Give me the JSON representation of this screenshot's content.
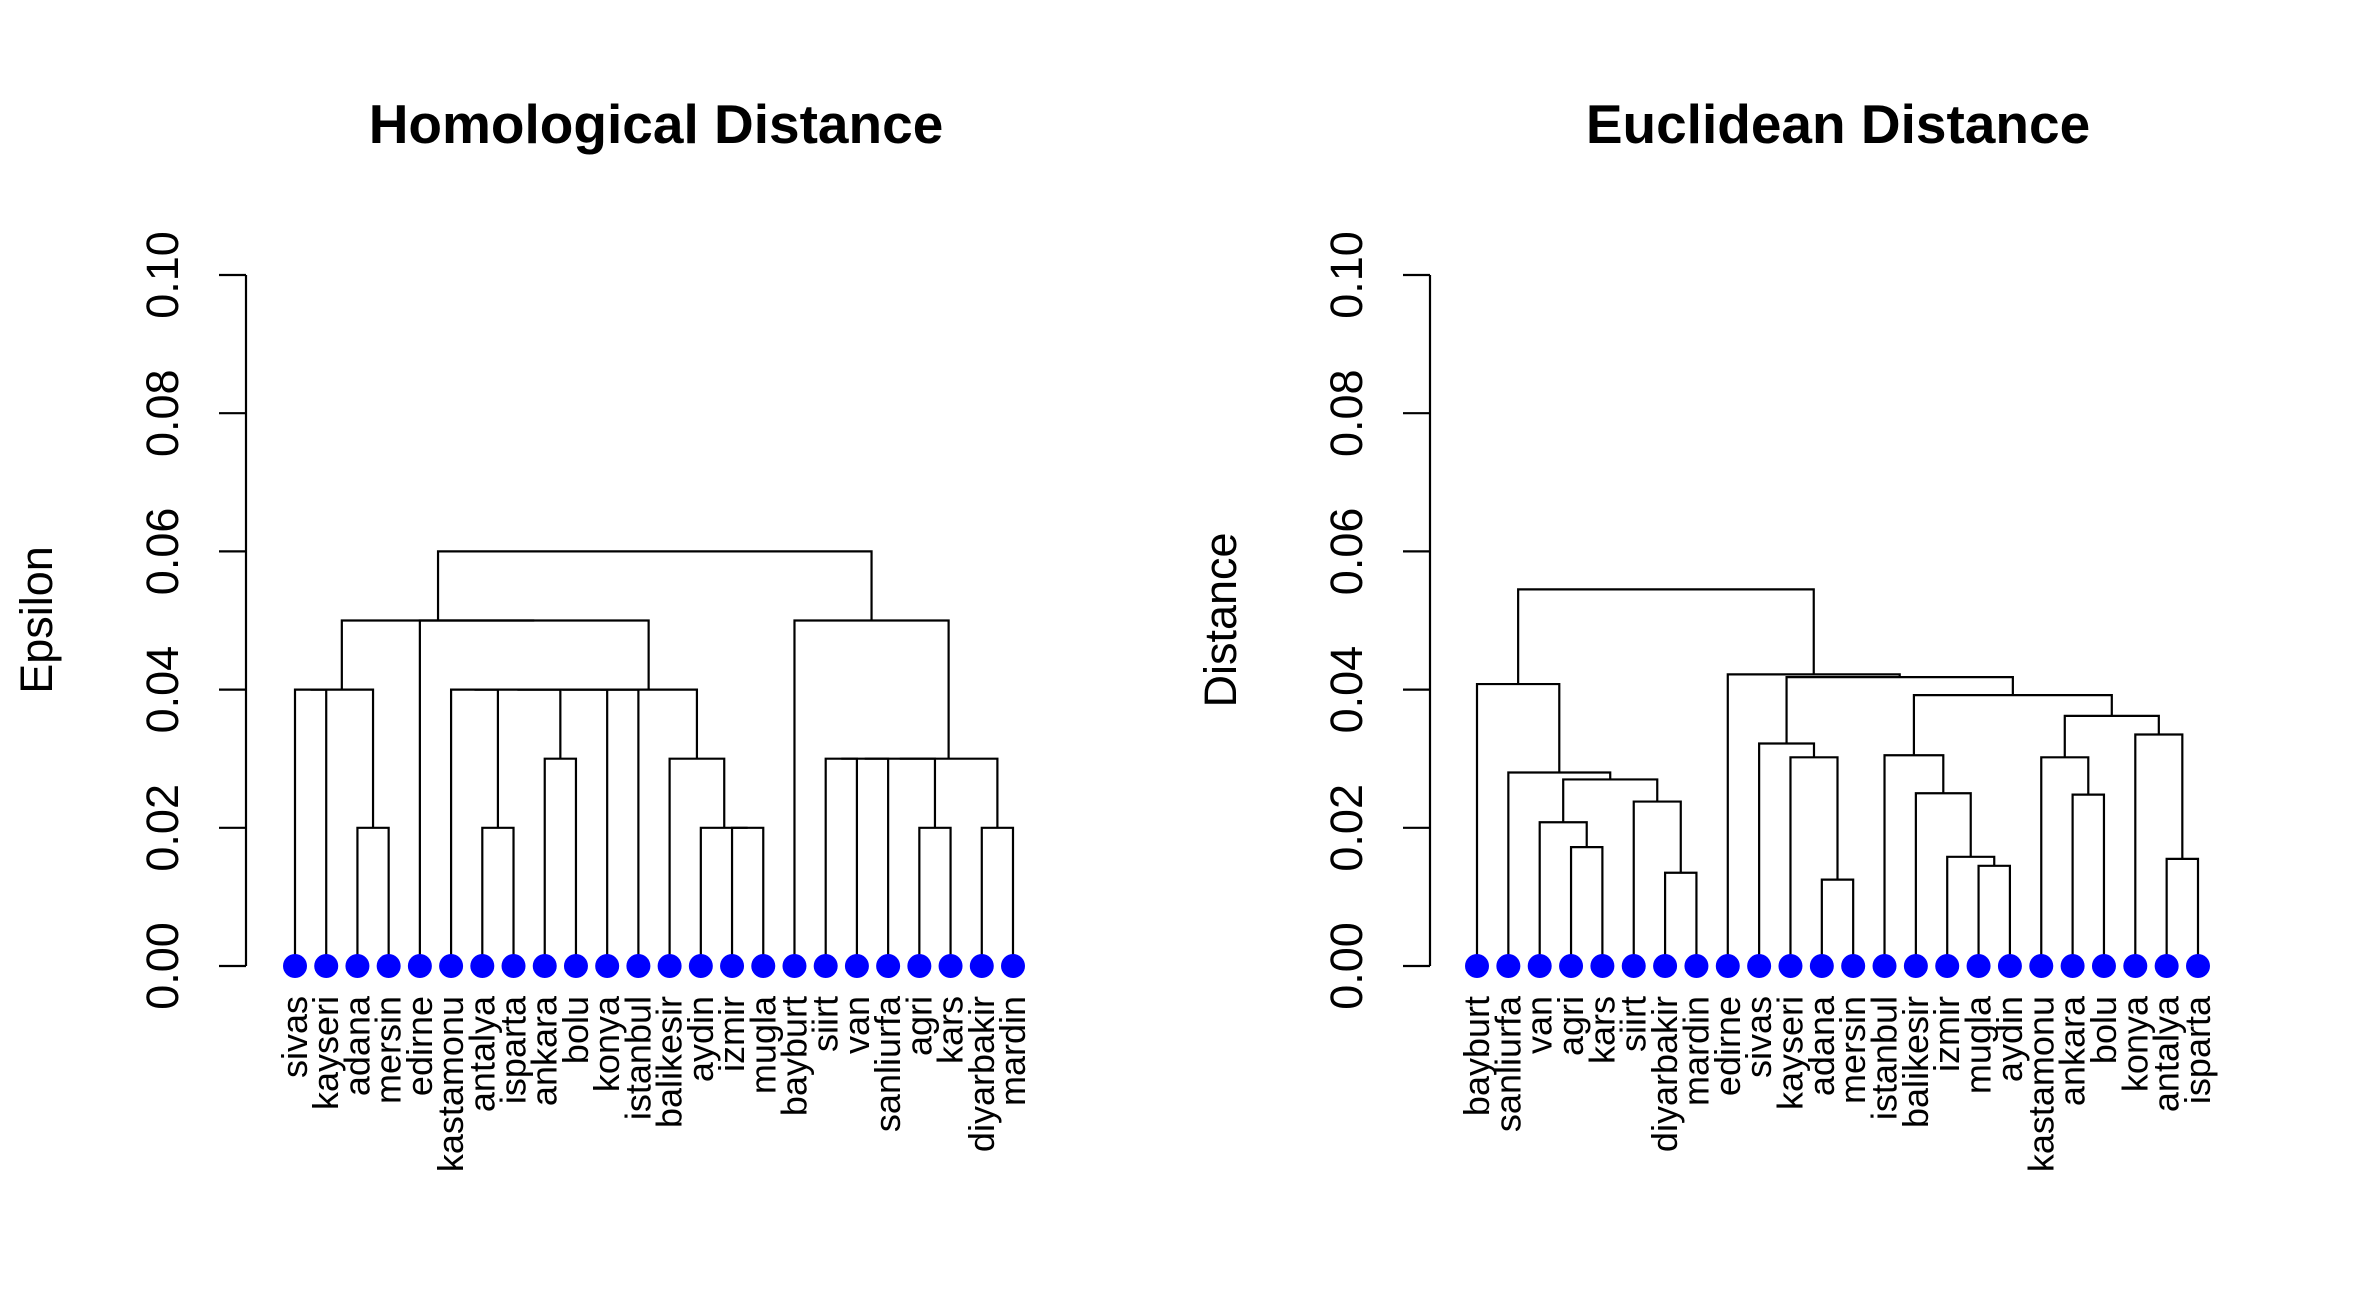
{
  "chart_data": [
    {
      "type": "dendrogram",
      "title": "Homological Distance",
      "ylabel": "Epsilon",
      "xlabel": "",
      "ylim": [
        0,
        0.1
      ],
      "yticks": [
        0.0,
        0.02,
        0.04,
        0.06,
        0.08,
        0.1
      ],
      "ytick_labels": [
        "0.00",
        "0.02",
        "0.04",
        "0.06",
        "0.08",
        "0.10"
      ],
      "leaf_color": "#0000ff",
      "leaves": [
        "sivas",
        "kayseri",
        "adana",
        "mersin",
        "edirne",
        "kastamonu",
        "antalya",
        "isparta",
        "ankara",
        "bolu",
        "konya",
        "istanbul",
        "balikesir",
        "aydin",
        "izmir",
        "mugla",
        "bayburt",
        "siirt",
        "van",
        "sanliurfa",
        "agri",
        "kars",
        "diyarbakir",
        "mardin"
      ],
      "merges": [
        [
          -3,
          -4,
          0.02
        ],
        [
          -15,
          -16,
          0.02
        ],
        [
          -7,
          -8,
          0.02
        ],
        [
          -21,
          -22,
          0.02
        ],
        [
          -23,
          -24,
          0.02
        ],
        [
          -14,
          2,
          0.02
        ],
        [
          -9,
          -10,
          0.03
        ],
        [
          -18,
          -19,
          0.03
        ],
        [
          8,
          -20,
          0.03
        ],
        [
          9,
          4,
          0.03
        ],
        [
          10,
          5,
          0.03
        ],
        [
          -13,
          6,
          0.03
        ],
        [
          -1,
          -2,
          0.04
        ],
        [
          13,
          1,
          0.04
        ],
        [
          -6,
          3,
          0.04
        ],
        [
          15,
          7,
          0.04
        ],
        [
          16,
          -11,
          0.04
        ],
        [
          17,
          -12,
          0.04
        ],
        [
          18,
          12,
          0.04
        ],
        [
          -5,
          19,
          0.05
        ],
        [
          14,
          20,
          0.05
        ],
        [
          -17,
          11,
          0.05
        ],
        [
          21,
          22,
          0.06
        ]
      ]
    },
    {
      "type": "dendrogram",
      "title": "Euclidean Distance",
      "ylabel": "Distance",
      "xlabel": "",
      "ylim": [
        0,
        0.1
      ],
      "yticks": [
        0.0,
        0.02,
        0.04,
        0.06,
        0.08,
        0.1
      ],
      "ytick_labels": [
        "0.00",
        "0.02",
        "0.04",
        "0.06",
        "0.08",
        "0.10"
      ],
      "leaf_color": "#0000ff",
      "leaves": [
        "bayburt",
        "sanliurfa",
        "van",
        "agri",
        "kars",
        "siirt",
        "diyarbakir",
        "mardin",
        "edirne",
        "sivas",
        "kayseri",
        "adana",
        "mersin",
        "istanbul",
        "balikesir",
        "izmir",
        "mugla",
        "aydin",
        "kastamonu",
        "ankara",
        "bolu",
        "konya",
        "antalya",
        "isparta"
      ],
      "merges": [
        [
          -12,
          -13,
          0.0125
        ],
        [
          -8,
          -7,
          0.0135
        ],
        [
          -17,
          -18,
          0.0145
        ],
        [
          -24,
          -23,
          0.0155
        ],
        [
          -16,
          3,
          0.0158
        ],
        [
          -5,
          -4,
          0.0172
        ],
        [
          -3,
          6,
          0.0208
        ],
        [
          -6,
          2,
          0.0238
        ],
        [
          -21,
          -20,
          0.0248
        ],
        [
          -15,
          5,
          0.025
        ],
        [
          8,
          7,
          0.027
        ],
        [
          -2,
          11,
          0.028
        ],
        [
          -19,
          9,
          0.0302
        ],
        [
          -11,
          1,
          0.0302
        ],
        [
          -14,
          10,
          0.0305
        ],
        [
          -10,
          14,
          0.0322
        ],
        [
          4,
          -22,
          0.0335
        ],
        [
          13,
          17,
          0.0362
        ],
        [
          15,
          18,
          0.0392
        ],
        [
          -1,
          12,
          0.0408
        ],
        [
          16,
          19,
          0.0418
        ],
        [
          -9,
          21,
          0.0422
        ],
        [
          20,
          22,
          0.0545
        ]
      ]
    }
  ]
}
